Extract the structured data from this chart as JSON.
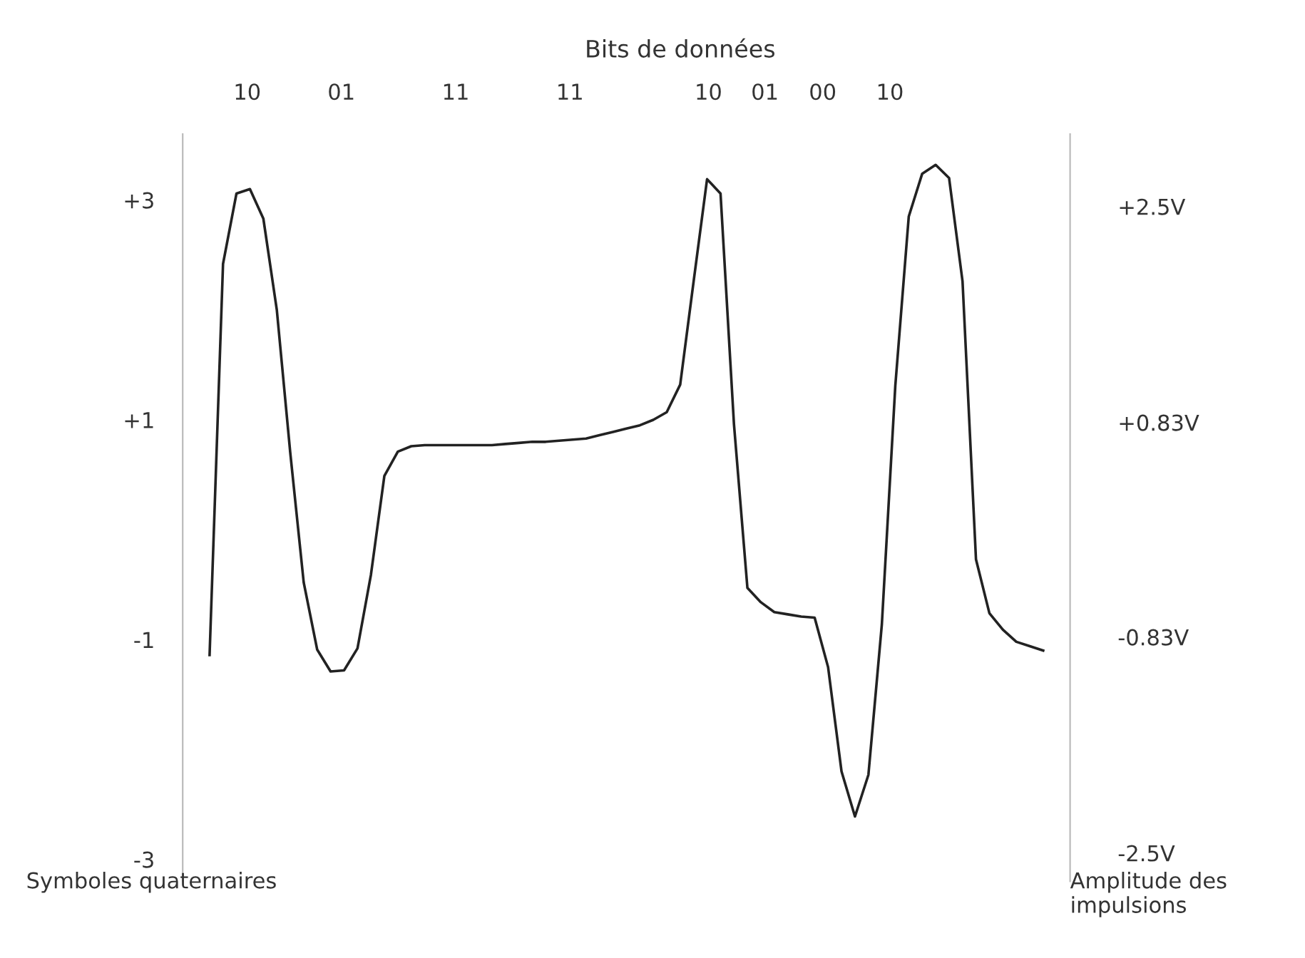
{
  "chart_data": {
    "type": "line",
    "xlabel": "Bits de données",
    "ylabel": "Symboles quaternaires",
    "y2label": "Amplitude des impulsions",
    "annotations": [
      "10",
      "01",
      "11",
      "11",
      "10",
      "01",
      "00",
      "10"
    ],
    "categories": [
      null,
      null,
      null,
      null,
      null,
      null,
      null,
      null,
      null,
      null,
      null,
      null,
      null,
      null,
      null,
      null,
      null,
      null,
      null,
      null,
      null,
      null,
      null,
      null,
      null,
      null,
      null,
      null,
      null,
      null,
      null,
      null,
      null,
      null,
      null,
      null,
      null,
      null,
      null,
      null,
      null,
      null,
      null,
      null,
      null,
      null,
      null,
      null,
      null,
      null,
      null,
      null,
      null,
      null,
      null,
      null,
      null,
      null,
      null,
      null,
      null,
      null,
      null
    ],
    "ylim": [
      -3.2,
      3.6
    ],
    "yticks": [
      {
        "value": 3,
        "label": "+3"
      },
      {
        "value": 1,
        "label": "+1"
      },
      -1,
      -3
    ],
    "y2lim": [
      -2.72,
      3.06
    ],
    "y2ticks": [
      {
        "value": 2.5,
        "label": "+2.5V"
      },
      {
        "value": 0.83,
        "label": "+0.83V"
      },
      {
        "value": -0.83,
        "label": "-0.83V"
      },
      {
        "value": -2.5,
        "label": "-2.5V"
      }
    ],
    "tick_labels": "y",
    "grid": false,
    "legend": false,
    "marker": "none",
    "line_style": "solid",
    "series": [
      {
        "color": "#222222",
        "values": [
          -1.14,
          2.42,
          3.06,
          3.1,
          2.83,
          2.0,
          0.7,
          -0.48,
          -1.09,
          -1.29,
          -1.28,
          -1.08,
          -0.41,
          0.49,
          0.71,
          0.76,
          0.77,
          0.77,
          0.77,
          0.77,
          0.77,
          0.77,
          0.78,
          0.79,
          0.8,
          0.8,
          0.81,
          0.82,
          0.83,
          0.86,
          0.89,
          0.92,
          0.95,
          1.0,
          1.07,
          1.32,
          2.26,
          3.19,
          3.06,
          0.96,
          -0.53,
          -0.66,
          -0.75,
          -0.77,
          -0.79,
          -0.8,
          -1.25,
          -2.2,
          -2.61,
          -2.23,
          -0.86,
          1.31,
          2.85,
          3.24,
          3.32,
          3.2,
          2.26,
          -0.27,
          -0.76,
          -0.91,
          -1.02,
          -1.06,
          -1.1
        ]
      }
    ]
  }
}
